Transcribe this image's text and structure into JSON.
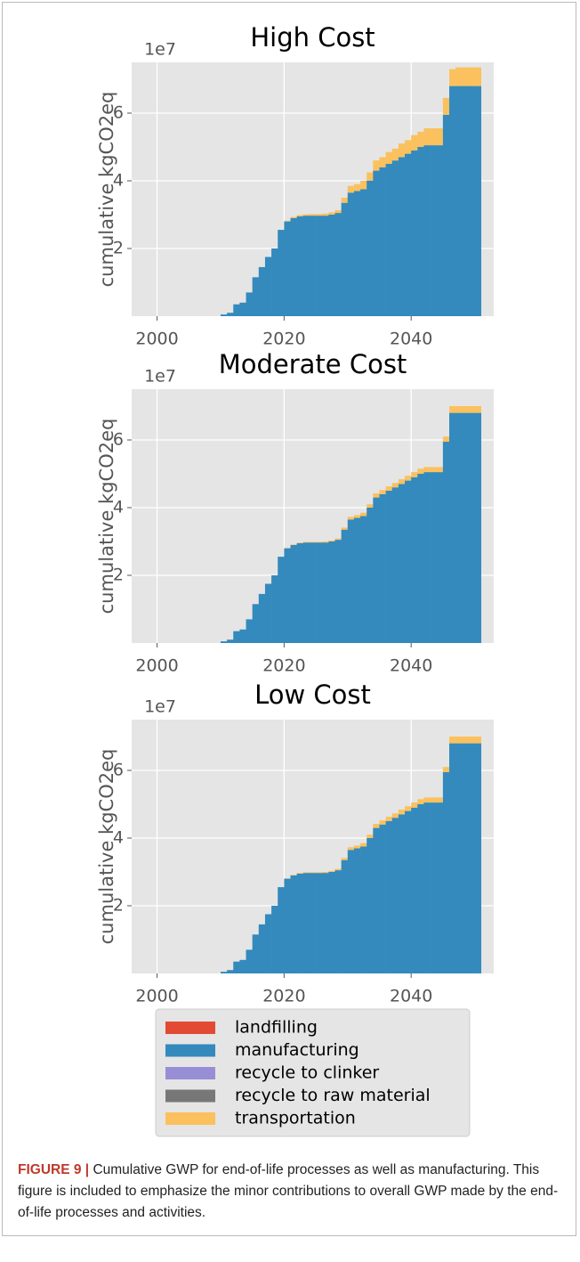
{
  "chart_data": [
    {
      "type": "bar",
      "stacked": true,
      "title": "High Cost",
      "ylabel": "cumulative kgCO2eq",
      "offset_label": "1e7",
      "x": [
        2010,
        2011,
        2012,
        2013,
        2014,
        2015,
        2016,
        2017,
        2018,
        2019,
        2020,
        2021,
        2022,
        2023,
        2024,
        2025,
        2026,
        2027,
        2028,
        2029,
        2030,
        2031,
        2032,
        2033,
        2034,
        2035,
        2036,
        2037,
        2038,
        2039,
        2040,
        2041,
        2042,
        2043,
        2044,
        2045,
        2046,
        2047,
        2048,
        2049,
        2050
      ],
      "xlim": [
        1996,
        2053
      ],
      "xticks": [
        2000,
        2020,
        2040
      ],
      "ylim": [
        0,
        7.5
      ],
      "yticks": [
        2,
        4,
        6
      ],
      "grid": true,
      "series": [
        {
          "name": "landfilling",
          "color": "#E24A33",
          "values": [
            0,
            0,
            0,
            0,
            0,
            0,
            0,
            0,
            0,
            0,
            0,
            0,
            0,
            0,
            0,
            0,
            0,
            0,
            0,
            0,
            0,
            0,
            0,
            0,
            0,
            0,
            0,
            0,
            0,
            0,
            0,
            0,
            0,
            0,
            0,
            0,
            0,
            0,
            0,
            0,
            0
          ]
        },
        {
          "name": "manufacturing",
          "color": "#348ABD",
          "values": [
            0.05,
            0.1,
            0.35,
            0.4,
            0.7,
            1.15,
            1.45,
            1.75,
            2.0,
            2.55,
            2.8,
            2.9,
            2.95,
            2.97,
            2.97,
            2.97,
            2.97,
            3.0,
            3.05,
            3.35,
            3.65,
            3.7,
            3.75,
            4.0,
            4.3,
            4.4,
            4.5,
            4.6,
            4.7,
            4.8,
            4.9,
            5.0,
            5.05,
            5.05,
            5.05,
            5.95,
            6.8,
            6.8,
            6.8,
            6.8,
            6.8
          ]
        },
        {
          "name": "recycle to clinker",
          "color": "#988ED5",
          "values": [
            0,
            0,
            0,
            0,
            0,
            0,
            0,
            0,
            0,
            0,
            0,
            0,
            0,
            0,
            0,
            0,
            0,
            0,
            0,
            0,
            0,
            0,
            0,
            0,
            0,
            0,
            0,
            0,
            0,
            0,
            0,
            0,
            0,
            0,
            0,
            0,
            0,
            0,
            0,
            0,
            0
          ]
        },
        {
          "name": "recycle to raw material",
          "color": "#777777",
          "values": [
            0,
            0,
            0,
            0,
            0,
            0,
            0,
            0,
            0,
            0,
            0,
            0,
            0,
            0,
            0,
            0,
            0,
            0,
            0,
            0,
            0,
            0,
            0,
            0,
            0,
            0,
            0,
            0,
            0,
            0,
            0,
            0,
            0,
            0,
            0,
            0,
            0,
            0,
            0,
            0,
            0
          ]
        },
        {
          "name": "transportation",
          "color": "#FBC15E",
          "values": [
            0,
            0,
            0,
            0,
            0,
            0,
            0,
            0,
            0,
            0,
            0.02,
            0.03,
            0.04,
            0.04,
            0.05,
            0.05,
            0.06,
            0.07,
            0.08,
            0.15,
            0.2,
            0.2,
            0.25,
            0.25,
            0.3,
            0.3,
            0.35,
            0.35,
            0.4,
            0.4,
            0.45,
            0.45,
            0.5,
            0.5,
            0.5,
            0.5,
            0.5,
            0.55,
            0.55,
            0.55,
            0.55
          ]
        }
      ]
    },
    {
      "type": "bar",
      "stacked": true,
      "title": "Moderate Cost",
      "ylabel": "cumulative kgCO2eq",
      "offset_label": "1e7",
      "x": [
        2010,
        2011,
        2012,
        2013,
        2014,
        2015,
        2016,
        2017,
        2018,
        2019,
        2020,
        2021,
        2022,
        2023,
        2024,
        2025,
        2026,
        2027,
        2028,
        2029,
        2030,
        2031,
        2032,
        2033,
        2034,
        2035,
        2036,
        2037,
        2038,
        2039,
        2040,
        2041,
        2042,
        2043,
        2044,
        2045,
        2046,
        2047,
        2048,
        2049,
        2050
      ],
      "xlim": [
        1996,
        2053
      ],
      "xticks": [
        2000,
        2020,
        2040
      ],
      "ylim": [
        0,
        7.5
      ],
      "yticks": [
        2,
        4,
        6
      ],
      "grid": true,
      "series": [
        {
          "name": "landfilling",
          "color": "#E24A33",
          "values": [
            0,
            0,
            0,
            0,
            0,
            0,
            0,
            0,
            0,
            0,
            0,
            0,
            0,
            0,
            0,
            0,
            0,
            0,
            0,
            0,
            0,
            0,
            0,
            0,
            0,
            0,
            0,
            0,
            0,
            0,
            0,
            0,
            0,
            0,
            0,
            0,
            0,
            0,
            0,
            0,
            0
          ]
        },
        {
          "name": "manufacturing",
          "color": "#348ABD",
          "values": [
            0.05,
            0.1,
            0.35,
            0.4,
            0.7,
            1.15,
            1.45,
            1.75,
            2.0,
            2.55,
            2.8,
            2.9,
            2.95,
            2.97,
            2.97,
            2.97,
            2.97,
            3.0,
            3.05,
            3.35,
            3.65,
            3.7,
            3.75,
            4.0,
            4.3,
            4.4,
            4.5,
            4.6,
            4.7,
            4.8,
            4.9,
            5.0,
            5.05,
            5.05,
            5.05,
            5.95,
            6.8,
            6.8,
            6.8,
            6.8,
            6.8
          ]
        },
        {
          "name": "recycle to clinker",
          "color": "#988ED5",
          "values": [
            0,
            0,
            0,
            0,
            0,
            0,
            0,
            0,
            0,
            0,
            0,
            0,
            0,
            0,
            0,
            0,
            0,
            0,
            0,
            0,
            0,
            0,
            0,
            0,
            0,
            0,
            0,
            0,
            0,
            0,
            0,
            0,
            0,
            0,
            0,
            0,
            0,
            0,
            0,
            0,
            0
          ]
        },
        {
          "name": "recycle to raw material",
          "color": "#777777",
          "values": [
            0,
            0,
            0,
            0,
            0,
            0,
            0,
            0,
            0,
            0,
            0,
            0,
            0,
            0,
            0,
            0,
            0,
            0,
            0,
            0,
            0,
            0,
            0,
            0,
            0,
            0,
            0,
            0,
            0,
            0,
            0,
            0,
            0,
            0,
            0,
            0,
            0,
            0,
            0,
            0,
            0
          ]
        },
        {
          "name": "transportation",
          "color": "#FBC15E",
          "values": [
            0,
            0,
            0,
            0,
            0,
            0,
            0,
            0,
            0,
            0,
            0.01,
            0.01,
            0.02,
            0.02,
            0.02,
            0.02,
            0.03,
            0.03,
            0.04,
            0.06,
            0.08,
            0.08,
            0.1,
            0.1,
            0.12,
            0.12,
            0.13,
            0.13,
            0.14,
            0.14,
            0.15,
            0.15,
            0.15,
            0.15,
            0.15,
            0.15,
            0.2,
            0.2,
            0.2,
            0.2,
            0.2
          ]
        }
      ]
    },
    {
      "type": "bar",
      "stacked": true,
      "title": "Low Cost",
      "ylabel": "cumulative kgCO2eq",
      "offset_label": "1e7",
      "x": [
        2010,
        2011,
        2012,
        2013,
        2014,
        2015,
        2016,
        2017,
        2018,
        2019,
        2020,
        2021,
        2022,
        2023,
        2024,
        2025,
        2026,
        2027,
        2028,
        2029,
        2030,
        2031,
        2032,
        2033,
        2034,
        2035,
        2036,
        2037,
        2038,
        2039,
        2040,
        2041,
        2042,
        2043,
        2044,
        2045,
        2046,
        2047,
        2048,
        2049,
        2050
      ],
      "xlim": [
        1996,
        2053
      ],
      "xticks": [
        2000,
        2020,
        2040
      ],
      "ylim": [
        0,
        7.5
      ],
      "yticks": [
        2,
        4,
        6
      ],
      "grid": true,
      "series": [
        {
          "name": "landfilling",
          "color": "#E24A33",
          "values": [
            0,
            0,
            0,
            0,
            0,
            0,
            0,
            0,
            0,
            0,
            0,
            0,
            0,
            0,
            0,
            0,
            0,
            0,
            0,
            0,
            0,
            0,
            0,
            0,
            0,
            0,
            0,
            0,
            0,
            0,
            0,
            0,
            0,
            0,
            0,
            0,
            0,
            0,
            0,
            0,
            0
          ]
        },
        {
          "name": "manufacturing",
          "color": "#348ABD",
          "values": [
            0.05,
            0.1,
            0.35,
            0.4,
            0.7,
            1.15,
            1.45,
            1.75,
            2.0,
            2.55,
            2.8,
            2.9,
            2.95,
            2.97,
            2.97,
            2.97,
            2.97,
            3.0,
            3.05,
            3.35,
            3.65,
            3.7,
            3.75,
            4.0,
            4.3,
            4.4,
            4.5,
            4.6,
            4.7,
            4.8,
            4.9,
            5.0,
            5.05,
            5.05,
            5.05,
            5.95,
            6.8,
            6.8,
            6.8,
            6.8,
            6.8
          ]
        },
        {
          "name": "recycle to clinker",
          "color": "#988ED5",
          "values": [
            0,
            0,
            0,
            0,
            0,
            0,
            0,
            0,
            0,
            0,
            0,
            0,
            0,
            0,
            0,
            0,
            0,
            0,
            0,
            0,
            0,
            0,
            0,
            0,
            0,
            0,
            0,
            0,
            0,
            0,
            0,
            0,
            0,
            0,
            0,
            0,
            0,
            0,
            0,
            0,
            0
          ]
        },
        {
          "name": "recycle to raw material",
          "color": "#777777",
          "values": [
            0,
            0,
            0,
            0,
            0,
            0,
            0,
            0,
            0,
            0,
            0,
            0,
            0,
            0,
            0,
            0,
            0,
            0,
            0,
            0,
            0,
            0,
            0,
            0,
            0,
            0,
            0,
            0,
            0,
            0,
            0,
            0,
            0,
            0,
            0,
            0,
            0,
            0,
            0,
            0,
            0
          ]
        },
        {
          "name": "transportation",
          "color": "#FBC15E",
          "values": [
            0,
            0,
            0,
            0,
            0,
            0,
            0,
            0,
            0,
            0,
            0.01,
            0.01,
            0.02,
            0.02,
            0.02,
            0.02,
            0.03,
            0.03,
            0.04,
            0.06,
            0.08,
            0.08,
            0.1,
            0.1,
            0.12,
            0.12,
            0.13,
            0.13,
            0.14,
            0.14,
            0.15,
            0.15,
            0.15,
            0.15,
            0.15,
            0.15,
            0.2,
            0.2,
            0.2,
            0.2,
            0.2
          ]
        }
      ]
    }
  ],
  "caption": {
    "label": "FIGURE 9 |",
    "text": "Cumulative GWP for end-of-life processes as well as manufacturing. This figure is included to emphasize the minor contributions to overall GWP made by the end-of-life processes and activities."
  }
}
